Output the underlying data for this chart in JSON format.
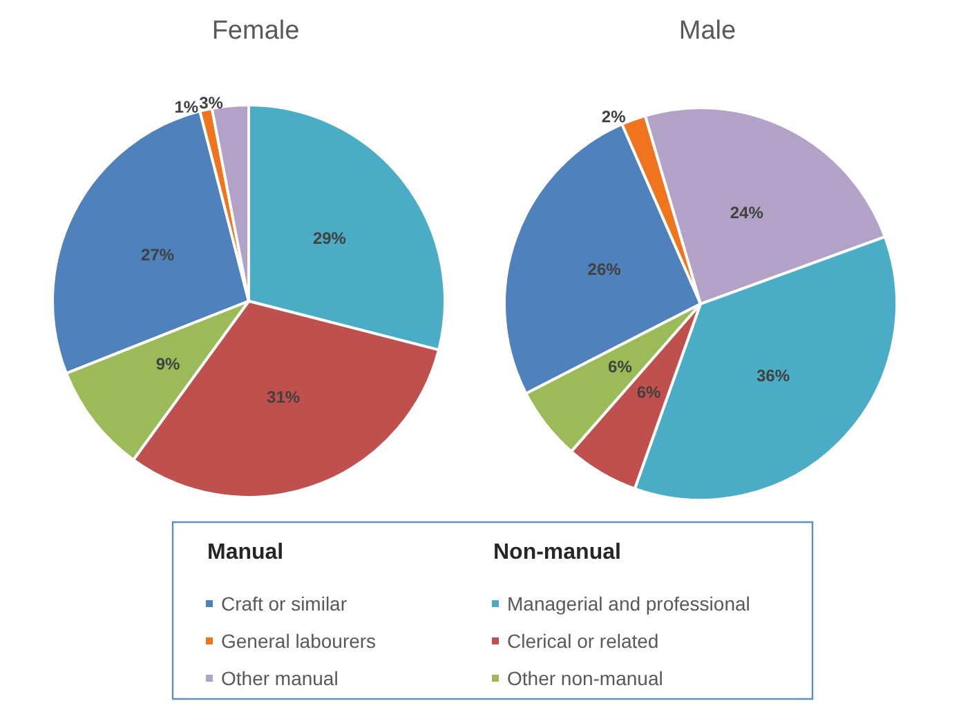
{
  "chart_data": {
    "type": "pie",
    "categories": [
      "Craft or similar",
      "General labourers",
      "Other manual",
      "Managerial and professional",
      "Clerical or related",
      "Other non-manual"
    ],
    "colors": [
      "#4f81bd",
      "#f0741d",
      "#b3a2c7",
      "#4bacc6",
      "#c0504d",
      "#9bbb59"
    ],
    "legend": "bottom",
    "annotations": [
      "Manual",
      "Non-manual"
    ],
    "series": [
      {
        "name": "Female",
        "values": [
          27,
          1,
          3,
          29,
          31,
          9
        ],
        "value_labels": [
          "27%",
          "1%",
          "3%",
          "29%",
          "31%",
          "9%"
        ]
      },
      {
        "name": "Male",
        "values": [
          26,
          2,
          24,
          36,
          6,
          6
        ],
        "value_labels": [
          "26%",
          "2%",
          "24%",
          "36%",
          "6%",
          "6%"
        ]
      }
    ]
  }
}
